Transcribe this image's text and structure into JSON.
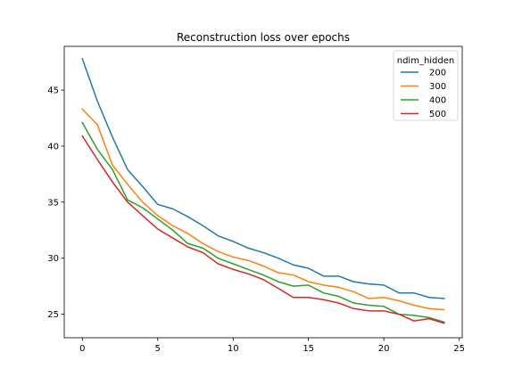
{
  "chart_data": {
    "type": "line",
    "title": "Reconstruction loss over epochs",
    "xlabel": "",
    "ylabel": "",
    "xlim": [
      -1.2,
      25.2
    ],
    "ylim": [
      22.9,
      48.9
    ],
    "xticks": [
      0,
      5,
      10,
      15,
      20,
      25
    ],
    "yticks": [
      25,
      30,
      35,
      40,
      45
    ],
    "grid": false,
    "legend": {
      "title": "ndim_hidden",
      "placement": "top-right"
    },
    "x": [
      0,
      1,
      2,
      3,
      4,
      5,
      6,
      7,
      8,
      9,
      10,
      11,
      12,
      13,
      14,
      15,
      16,
      17,
      18,
      19,
      20,
      21,
      22,
      23,
      24
    ],
    "series": [
      {
        "name": "200",
        "color": "#1f77b4",
        "values": [
          47.8,
          44.0,
          40.8,
          37.9,
          36.4,
          34.8,
          34.4,
          33.7,
          32.9,
          32.0,
          31.5,
          30.9,
          30.5,
          30.0,
          29.4,
          29.1,
          28.4,
          28.4,
          27.9,
          27.7,
          27.6,
          26.9,
          26.9,
          26.5,
          26.4
        ]
      },
      {
        "name": "300",
        "color": "#ff7f0e",
        "values": [
          43.3,
          41.9,
          38.3,
          36.6,
          35.0,
          33.8,
          32.9,
          32.2,
          31.3,
          30.6,
          30.1,
          29.8,
          29.3,
          28.7,
          28.5,
          27.9,
          27.6,
          27.4,
          27.0,
          26.4,
          26.5,
          26.2,
          25.8,
          25.5,
          25.4
        ]
      },
      {
        "name": "400",
        "color": "#2ca02c",
        "values": [
          42.1,
          39.7,
          37.9,
          35.2,
          34.5,
          33.5,
          32.5,
          31.3,
          30.9,
          30.0,
          29.5,
          29.0,
          28.5,
          27.9,
          27.5,
          27.6,
          26.9,
          26.6,
          26.0,
          25.8,
          25.7,
          25.0,
          24.9,
          24.7,
          24.3
        ]
      },
      {
        "name": "500",
        "color": "#d62728",
        "values": [
          40.9,
          38.8,
          36.8,
          35.0,
          33.8,
          32.6,
          31.8,
          31.0,
          30.5,
          29.5,
          29.0,
          28.6,
          28.1,
          27.3,
          26.5,
          26.5,
          26.3,
          26.0,
          25.5,
          25.3,
          25.3,
          25.0,
          24.4,
          24.6,
          24.2
        ]
      }
    ]
  }
}
